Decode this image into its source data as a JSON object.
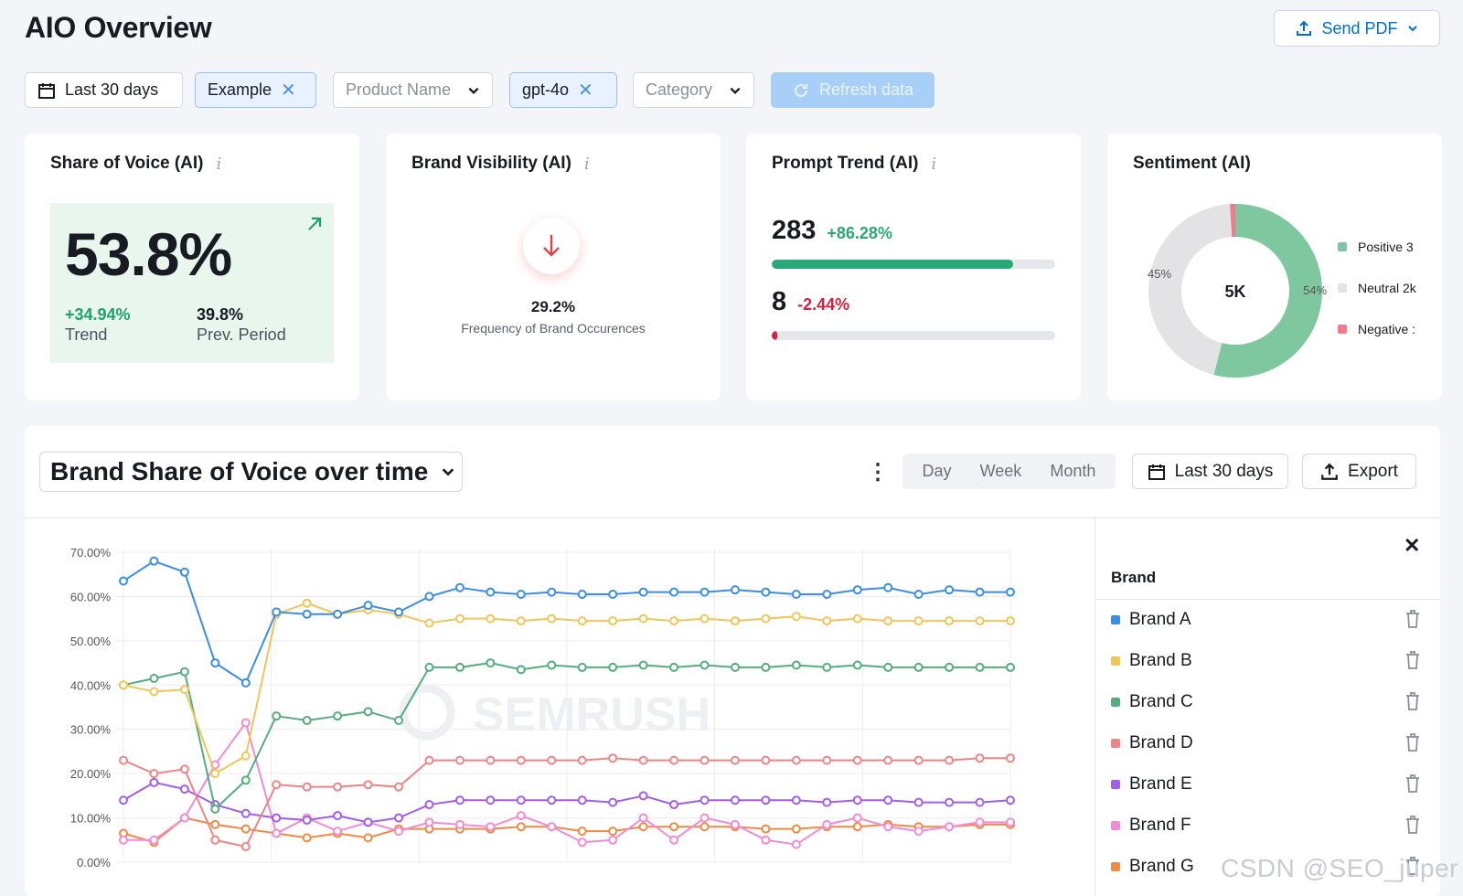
{
  "header": {
    "title": "AIO Overview",
    "send_pdf": "Send PDF"
  },
  "filters": {
    "date": "Last 30 days",
    "project": "Example",
    "product_placeholder": "Product Name",
    "model": "gpt-4o",
    "category_placeholder": "Category",
    "refresh": "Refresh data"
  },
  "share_of_voice": {
    "title": "Share of Voice (AI)",
    "info": "i",
    "value": "53.8%",
    "trend": "+34.94%",
    "trend_label": "Trend",
    "prev": "39.8%",
    "prev_label": "Prev. Period"
  },
  "brand_visibility": {
    "title": "Brand Visibility (AI)",
    "info": "i",
    "value": "29.2%",
    "label": "Frequency of Brand Occurences"
  },
  "prompt_trend": {
    "title": "Prompt Trend (AI)",
    "info": "i",
    "rows": [
      {
        "value": "283",
        "change": "+86.28%",
        "progress": 0.85,
        "color": "#2aa876",
        "change_color": "#2aa876"
      },
      {
        "value": "8",
        "change": "-2.44%",
        "progress": 0.02,
        "color": "#d5203d",
        "change_color": "#d5203d"
      }
    ]
  },
  "sentiment": {
    "title": "Sentiment (AI)",
    "center": "5K",
    "segments": [
      {
        "label": "54%",
        "fraction": 0.54,
        "color": "#7fc89f"
      },
      {
        "label": "45%",
        "fraction": 0.45,
        "color": "#e3e3e5"
      },
      {
        "label": "",
        "fraction": 0.01,
        "color": "#f17a8b"
      }
    ],
    "legend": [
      {
        "text": "Positive 3",
        "color": "#7fc89f"
      },
      {
        "text": "Neutral 2k",
        "color": "#e3e3e5"
      },
      {
        "text": "Negative :",
        "color": "#f17a8b"
      }
    ]
  },
  "sov_chart": {
    "title": "Brand Share of Voice over time",
    "periods": [
      "Day",
      "Week",
      "Month"
    ],
    "date_range": "Last 30 days",
    "export": "Export",
    "watermark": "SEMRUSH"
  },
  "brand_panel": {
    "header": "Brand",
    "brands": [
      {
        "name": "Brand A",
        "color": "#3a8ee6"
      },
      {
        "name": "Brand B",
        "color": "#f0c659"
      },
      {
        "name": "Brand C",
        "color": "#55ad7f"
      },
      {
        "name": "Brand D",
        "color": "#ef8484"
      },
      {
        "name": "Brand E",
        "color": "#a25ee8"
      },
      {
        "name": "Brand F",
        "color": "#f28bd6"
      },
      {
        "name": "Brand G",
        "color": "#ef8a43"
      }
    ]
  },
  "chart_data": {
    "type": "line",
    "title": "Brand Share of Voice over time",
    "xlabel": "",
    "ylabel": "",
    "ylim": [
      0,
      70
    ],
    "y_ticks": [
      "0.00%",
      "10.00%",
      "20.00%",
      "30.00%",
      "40.00%",
      "50.00%",
      "60.00%",
      "70.00%"
    ],
    "grid": true,
    "x": [
      1,
      2,
      3,
      4,
      5,
      6,
      7,
      8,
      9,
      10,
      11,
      12,
      13,
      14,
      15,
      16,
      17,
      18,
      19,
      20,
      21,
      22,
      23,
      24,
      25,
      26,
      27,
      28,
      29,
      30
    ],
    "series": [
      {
        "name": "Brand A",
        "color": "#3a8ee6",
        "values": [
          63.5,
          68,
          65.5,
          45,
          40.5,
          56.5,
          56,
          56,
          58,
          56.5,
          60,
          62,
          61,
          60.5,
          61,
          60.5,
          60.5,
          61,
          61,
          61,
          61.5,
          61,
          60.5,
          60.5,
          61.5,
          62,
          60.5,
          61.5,
          61,
          61
        ]
      },
      {
        "name": "Brand B",
        "color": "#f0c659",
        "values": [
          40,
          38.5,
          39,
          20,
          24,
          56,
          58.5,
          56,
          57,
          56,
          54,
          55,
          55,
          54.5,
          55,
          54.5,
          54.5,
          55,
          54.5,
          55,
          54.5,
          55,
          55.5,
          54.5,
          55,
          54.5,
          54.5,
          54.5,
          54.5,
          54.5
        ]
      },
      {
        "name": "Brand C",
        "color": "#55ad7f",
        "values": [
          40,
          41.5,
          43,
          12,
          18.5,
          33,
          32,
          33,
          34,
          32,
          44,
          44,
          45,
          43.5,
          44.5,
          44,
          44,
          44.5,
          44,
          44.5,
          44,
          44,
          44.5,
          44,
          44.5,
          44,
          44,
          44,
          44,
          44
        ]
      },
      {
        "name": "Brand D",
        "color": "#ef8484",
        "values": [
          23,
          20,
          21,
          5,
          3.5,
          17.5,
          17,
          17,
          17.5,
          17,
          23,
          23,
          23,
          23,
          23,
          23,
          23.5,
          23,
          23,
          23,
          23,
          23,
          23,
          23,
          23,
          23,
          23,
          23,
          23.5,
          23.5
        ]
      },
      {
        "name": "Brand E",
        "color": "#a25ee8",
        "values": [
          14,
          18,
          16.5,
          13,
          11,
          10,
          9.5,
          10.5,
          9,
          10,
          13,
          14,
          14,
          14,
          14,
          14,
          13.5,
          15,
          13,
          14,
          14,
          14,
          14,
          13.5,
          14,
          14,
          13.5,
          13.5,
          13.5,
          14
        ]
      },
      {
        "name": "Brand F",
        "color": "#f28bd6",
        "values": [
          5,
          5,
          10,
          22,
          31.5,
          6.5,
          10,
          7,
          9,
          7,
          9,
          8.5,
          8,
          10.5,
          8,
          4.5,
          5,
          10,
          5,
          10,
          8.5,
          5,
          4,
          8.5,
          10,
          8,
          7,
          8,
          9,
          9
        ]
      },
      {
        "name": "Brand G",
        "color": "#ef8a43",
        "values": [
          6.5,
          4.5,
          10,
          8.5,
          7.5,
          6.5,
          5.5,
          6.5,
          5.5,
          7.5,
          7.5,
          7.5,
          7.5,
          8,
          8,
          7,
          7,
          8,
          8,
          8,
          8,
          7.5,
          7.5,
          8,
          8,
          8.5,
          8,
          8,
          8.5,
          8.5
        ]
      }
    ]
  },
  "footer": {
    "watermark": "CSDN @SEO_juper"
  }
}
